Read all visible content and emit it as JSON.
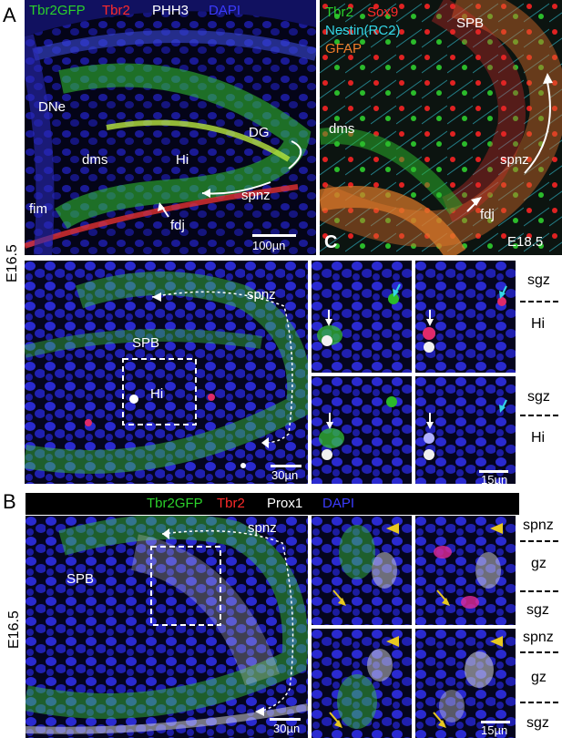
{
  "panelA": {
    "letter": "A",
    "stage": "E16.5",
    "legend": [
      "Tbr2GFP",
      "Tbr2",
      "PHH3",
      "DAPI"
    ],
    "legend_colors": [
      "#2bd12b",
      "#ff2a2a",
      "#ffffff",
      "#3b3bff"
    ],
    "labels": {
      "dne": "DNe",
      "dms": "dms",
      "hi": "Hi",
      "dg": "DG",
      "fim": "fim",
      "spnz": "spnz",
      "fdj": "fdj"
    },
    "scale": "100µn"
  },
  "panelC": {
    "letter": "C",
    "stage": "E18.5",
    "legend": [
      "Tbr2",
      "Sox9",
      "Nestin(RC2)",
      "GFAP"
    ],
    "legend_colors": [
      "#2bd12b",
      "#ff2a2a",
      "#33d6e6",
      "#f07b2a"
    ],
    "labels": {
      "spb": "SPB",
      "dms": "dms",
      "spnz": "spnz",
      "fdj": "fdj"
    }
  },
  "panelA2": {
    "labels": {
      "spnz": "spnz",
      "spb": "SPB",
      "hi": "Hi"
    },
    "scale": "30µn",
    "inset_scale": "15µn",
    "side": [
      "sgz",
      "Hi",
      "sgz",
      "Hi"
    ]
  },
  "panelB": {
    "letter": "B",
    "stage": "E16.5",
    "legend": [
      "Tbr2GFP",
      "Tbr2",
      "Prox1",
      "DAPI"
    ],
    "legend_colors": [
      "#2bd12b",
      "#ff2a2a",
      "#ffffff",
      "#3b3bff"
    ],
    "labels": {
      "spnz": "spnz",
      "spb": "SPB"
    },
    "scale": "30µn",
    "inset_scale": "15µn",
    "side": [
      "spnz",
      "gz",
      "sgz",
      "spnz",
      "gz",
      "sgz"
    ]
  }
}
